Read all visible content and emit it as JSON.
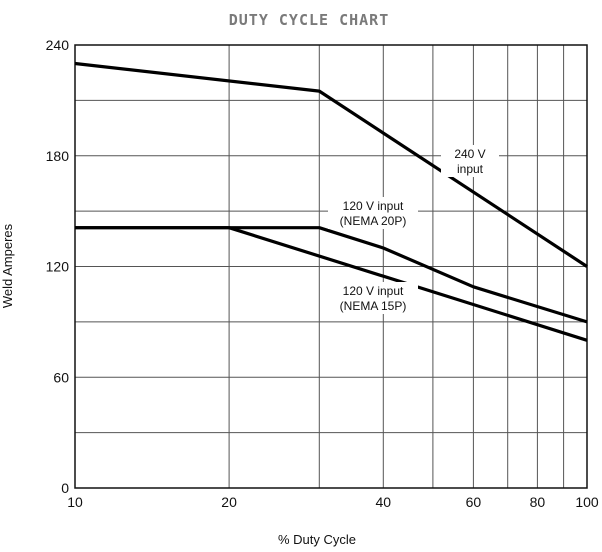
{
  "chart_data": {
    "type": "line",
    "title": "DUTY CYCLE CHART",
    "xlabel": "% Duty Cycle",
    "ylabel": "Weld Amperes",
    "x_scale": "log",
    "xlim": [
      10,
      100
    ],
    "ylim": [
      0,
      240
    ],
    "x_ticks": [
      10,
      20,
      40,
      60,
      80,
      100
    ],
    "x_grid": [
      10,
      20,
      30,
      40,
      50,
      60,
      70,
      80,
      90,
      100
    ],
    "y_ticks": [
      0,
      60,
      120,
      180,
      240
    ],
    "y_grid": [
      0,
      30,
      60,
      90,
      120,
      150,
      180,
      210,
      240
    ],
    "grid": true,
    "series": [
      {
        "label_lines": [
          "240 V",
          "input"
        ],
        "points": [
          [
            10,
            230
          ],
          [
            30,
            215
          ],
          [
            100,
            120
          ]
        ]
      },
      {
        "label_lines": [
          "120 V input",
          "(NEMA 20P)"
        ],
        "points": [
          [
            10,
            141
          ],
          [
            30,
            141
          ],
          [
            40,
            130
          ],
          [
            60,
            109
          ],
          [
            100,
            90
          ]
        ]
      },
      {
        "label_lines": [
          "120 V input",
          "(NEMA 15P)"
        ],
        "points": [
          [
            10,
            141
          ],
          [
            20,
            141
          ],
          [
            100,
            80
          ]
        ]
      }
    ]
  }
}
